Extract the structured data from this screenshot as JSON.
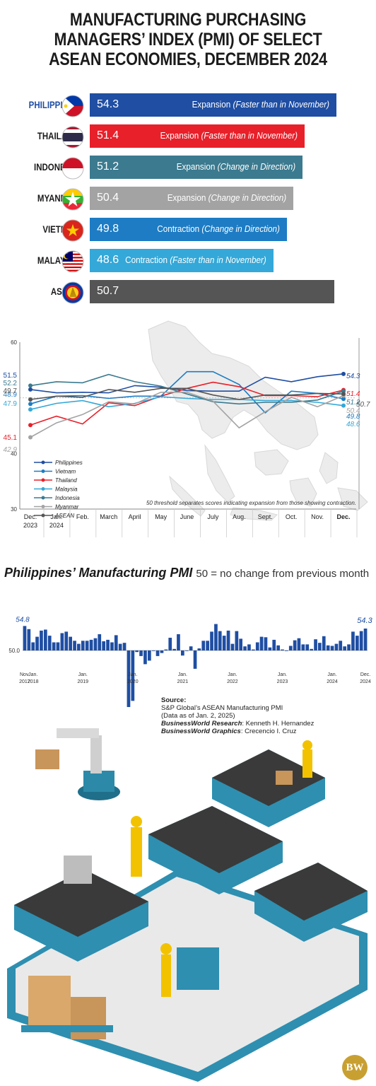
{
  "title_lines": [
    "MANUFACTURING PURCHASING",
    "MANAGERS’ INDEX (PMI) OF SELECT",
    "ASEAN ECONOMIES, DECEMBER 2024"
  ],
  "colors": {
    "philippines": "#1f4ea3",
    "thailand": "#e8202a",
    "indonesia": "#3b7a8f",
    "myanmar": "#a3a3a3",
    "vietnam": "#1d7cc4",
    "malaysia": "#34a8d8",
    "asean": "#555555"
  },
  "chart_data": [
    {
      "type": "bar",
      "categories": [
        "PHILIPPINES",
        "THAILAND",
        "INDONESIA",
        "MYANMAR",
        "VIETNAM",
        "MALAYSIA",
        "ASEAN"
      ],
      "values": [
        54.3,
        51.4,
        51.2,
        50.4,
        49.8,
        48.6,
        50.7
      ],
      "value_labels": [
        "54.3",
        "51.4",
        "51.2",
        "50.4",
        "49.8",
        "48.6",
        "50.7"
      ],
      "descriptions": [
        {
          "status": "Expansion",
          "detail": "(Faster than in November)"
        },
        {
          "status": "Expansion",
          "detail": "(Faster than in November)"
        },
        {
          "status": "Expansion",
          "detail": "(Change in Direction)"
        },
        {
          "status": "Expansion",
          "detail": "(Change in Direction)"
        },
        {
          "status": "Contraction",
          "detail": "(Change in Direction)"
        },
        {
          "status": "Contraction",
          "detail": "(Faster than in November)"
        },
        {
          "status": "",
          "detail": ""
        }
      ],
      "flags": [
        "philippines-flag-icon",
        "thailand-flag-icon",
        "indonesia-flag-icon",
        "myanmar-flag-icon",
        "vietnam-flag-icon",
        "malaysia-flag-icon",
        "asean-emblem-icon"
      ],
      "highlight": "PHILIPPINES"
    },
    {
      "type": "line",
      "x": [
        "Dec.\n2023",
        "Jan.\n2024",
        "Feb.",
        "March",
        "April",
        "May",
        "June",
        "July",
        "Aug.",
        "Sept.",
        "Oct.",
        "Nov.",
        "Dec."
      ],
      "ylim": [
        30,
        60
      ],
      "yticks": [
        "60",
        "40",
        "30"
      ],
      "series": [
        {
          "name": "Philippines",
          "color_key": "philippines",
          "values": [
            51.5,
            50.9,
            51.0,
            50.9,
            52.2,
            51.9,
            51.3,
            51.2,
            51.2,
            53.7,
            52.9,
            53.8,
            54.3
          ],
          "start_label": "51.5",
          "end_label": "54.3"
        },
        {
          "name": "Vietnam",
          "color_key": "vietnam",
          "values": [
            48.9,
            50.3,
            50.4,
            49.9,
            50.3,
            50.3,
            54.7,
            54.7,
            52.4,
            47.3,
            51.2,
            50.8,
            49.8
          ],
          "start_label": "48.9",
          "end_label": "49.8"
        },
        {
          "name": "Thailand",
          "color_key": "thailand",
          "values": [
            45.1,
            46.7,
            45.3,
            49.1,
            48.6,
            50.3,
            51.7,
            52.8,
            52.0,
            50.4,
            50.4,
            50.2,
            51.4
          ],
          "start_label": "45.1",
          "end_label": "51.4"
        },
        {
          "name": "Malaysia",
          "color_key": "malaysia",
          "values": [
            47.9,
            49.0,
            49.5,
            48.4,
            49.0,
            50.2,
            49.9,
            49.7,
            49.7,
            49.5,
            49.5,
            49.2,
            48.6
          ],
          "start_label": "47.9",
          "end_label": "48.6"
        },
        {
          "name": "Indonesia",
          "color_key": "indonesia",
          "values": [
            52.2,
            52.9,
            52.7,
            54.2,
            52.9,
            52.1,
            50.7,
            49.3,
            48.9,
            49.2,
            49.2,
            49.6,
            51.2
          ],
          "start_label": "52.2",
          "end_label": "51.2"
        },
        {
          "name": "Myanmar",
          "color_key": "myanmar",
          "values": [
            42.9,
            45.5,
            47.0,
            49.3,
            48.9,
            51.0,
            51.0,
            49.4,
            44.6,
            47.5,
            50.1,
            48.4,
            50.4
          ],
          "start_label": "42.9",
          "end_label": "50.4"
        },
        {
          "name": "ASEAN",
          "color_key": "asean",
          "values": [
            49.7,
            50.3,
            50.1,
            51.5,
            51.0,
            51.7,
            51.7,
            50.5,
            49.7,
            50.5,
            50.5,
            50.8,
            50.7
          ],
          "start_label": "49.7",
          "end_label": "50.7"
        }
      ],
      "note": "50 threshold separates scores indicating expansion from those showing contraction.",
      "legend_position": "bottom-left"
    },
    {
      "type": "bar",
      "title": "Philippines’ Manufacturing PMI",
      "subtitle": "50 = no change from previous month",
      "baseline": 50.0,
      "baseline_label": "50.0",
      "first_label": "54.8",
      "last_label": "54.3",
      "x_labels": [
        "Nov.\n2017",
        "Jan.\n2018",
        "Jan.\n2019",
        "Jan.\n2020",
        "Jan.\n2021",
        "Jan.\n2022",
        "Jan.\n2023",
        "Jan.\n2024",
        "Dec.\n2024"
      ],
      "values": [
        54.8,
        54.2,
        51.6,
        52.7,
        53.9,
        54.1,
        52.9,
        51.6,
        51.6,
        53.4,
        53.7,
        52.7,
        51.9,
        51.3,
        51.9,
        51.9,
        52.1,
        52.4,
        53.2,
        51.8,
        52.1,
        51.6,
        53.0,
        51.3,
        51.5,
        31.6,
        40.1,
        49.7,
        48.9,
        47.3,
        48.0,
        49.9,
        48.9,
        49.5,
        50.2,
        52.5,
        50.3,
        53.2,
        49.0,
        49.9,
        50.8,
        46.4,
        50.4,
        51.9,
        51.9,
        53.7,
        55.2,
        53.8,
        52.9,
        53.9,
        51.3,
        53.8,
        52.3,
        50.8,
        51.2,
        50.2,
        51.6,
        52.7,
        52.6,
        50.6,
        52.1,
        51.0,
        50.2,
        49.9,
        50.9,
        52.0,
        52.4,
        51.2,
        51.2,
        50.3,
        52.2,
        51.5,
        52.8,
        51.0,
        50.9,
        51.3,
        51.9,
        50.8,
        51.2,
        53.7,
        52.9,
        53.8,
        54.3
      ]
    }
  ],
  "source": {
    "label": "Source:",
    "line1": "S&P Global’s ASEAN Manufacturing PMI",
    "line2": "(Data as of Jan. 2, 2025)",
    "research_label": "BusinessWorld Research",
    "research_name": ": Kenneth H. Hernandez",
    "graphics_label": "BusinessWorld Graphics",
    "graphics_name": ": Crecencio I. Cruz"
  },
  "logo": "BW"
}
